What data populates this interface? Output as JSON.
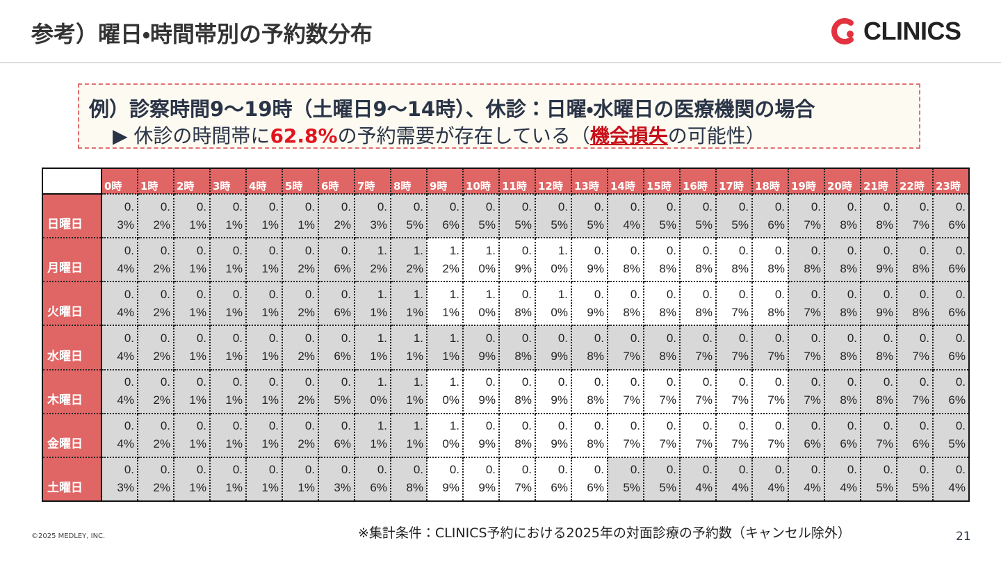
{
  "header": {
    "title": "参考）曜日・時間帯別の予約数分布",
    "logo": "CLINICS"
  },
  "callout": {
    "line1": "例）診察時間9〜19時（土曜日9〜14時）、休診：日曜・水曜日の医療機関の場合",
    "line2": [
      "▶ 休診の時間帯に",
      "62.8%",
      "の予約需要が存在している（",
      "機会損失",
      "の可能性）"
    ]
  },
  "table": {
    "columns": [
      "0時",
      "1時",
      "2時",
      "3時",
      "4時",
      "5時",
      "6時",
      "7時",
      "8時",
      "9時",
      "10時",
      "11時",
      "12時",
      "13時",
      "14時",
      "15時",
      "16時",
      "17時",
      "18時",
      "19時",
      "20時",
      "21時",
      "22時",
      "23時"
    ],
    "rows": [
      {
        "label": "日曜日",
        "cells": [
          "0.3%",
          "0.2%",
          "0.1%",
          "0.1%",
          "0.1%",
          "0.1%",
          "0.2%",
          "0.3%",
          "0.5%",
          "0.6%",
          "0.5%",
          "0.5%",
          "0.5%",
          "0.5%",
          "0.4%",
          "0.5%",
          "0.5%",
          "0.5%",
          "0.6%",
          "0.7%",
          "0.8%",
          "0.8%",
          "0.7%",
          "0.6%"
        ]
      },
      {
        "label": "月曜日",
        "cells": [
          "0.4%",
          "0.2%",
          "0.1%",
          "0.1%",
          "0.1%",
          "0.2%",
          "0.6%",
          "1.2%",
          "1.2%",
          "1.2%",
          "1.0%",
          "0.9%",
          "1.0%",
          "0.9%",
          "0.8%",
          "0.8%",
          "0.8%",
          "0.8%",
          "0.8%",
          "0.8%",
          "0.8%",
          "0.9%",
          "0.8%",
          "0.6%"
        ]
      },
      {
        "label": "火曜日",
        "cells": [
          "0.4%",
          "0.2%",
          "0.1%",
          "0.1%",
          "0.1%",
          "0.2%",
          "0.6%",
          "1.1%",
          "1.1%",
          "1.1%",
          "1.0%",
          "0.8%",
          "1.0%",
          "0.9%",
          "0.8%",
          "0.8%",
          "0.8%",
          "0.7%",
          "0.8%",
          "0.7%",
          "0.8%",
          "0.9%",
          "0.8%",
          "0.6%"
        ]
      },
      {
        "label": "水曜日",
        "cells": [
          "0.4%",
          "0.2%",
          "0.1%",
          "0.1%",
          "0.1%",
          "0.2%",
          "0.6%",
          "1.1%",
          "1.1%",
          "1.1%",
          "0.9%",
          "0.8%",
          "0.9%",
          "0.8%",
          "0.7%",
          "0.8%",
          "0.7%",
          "0.7%",
          "0.7%",
          "0.7%",
          "0.8%",
          "0.8%",
          "0.7%",
          "0.6%"
        ]
      },
      {
        "label": "木曜日",
        "cells": [
          "0.4%",
          "0.2%",
          "0.1%",
          "0.1%",
          "0.1%",
          "0.2%",
          "0.5%",
          "1.0%",
          "1.1%",
          "1.0%",
          "0.9%",
          "0.8%",
          "0.9%",
          "0.8%",
          "0.7%",
          "0.7%",
          "0.7%",
          "0.7%",
          "0.7%",
          "0.7%",
          "0.8%",
          "0.8%",
          "0.7%",
          "0.6%"
        ]
      },
      {
        "label": "金曜日",
        "cells": [
          "0.4%",
          "0.2%",
          "0.1%",
          "0.1%",
          "0.1%",
          "0.2%",
          "0.6%",
          "1.1%",
          "1.1%",
          "1.0%",
          "0.9%",
          "0.8%",
          "0.9%",
          "0.8%",
          "0.7%",
          "0.7%",
          "0.7%",
          "0.7%",
          "0.7%",
          "0.6%",
          "0.6%",
          "0.7%",
          "0.6%",
          "0.5%"
        ]
      },
      {
        "label": "土曜日",
        "cells": [
          "0.3%",
          "0.2%",
          "0.1%",
          "0.1%",
          "0.1%",
          "0.1%",
          "0.3%",
          "0.6%",
          "0.8%",
          "0.9%",
          "0.9%",
          "0.7%",
          "0.6%",
          "0.6%",
          "0.5%",
          "0.5%",
          "0.4%",
          "0.4%",
          "0.4%",
          "0.4%",
          "0.4%",
          "0.5%",
          "0.5%",
          "0.4%"
        ]
      }
    ]
  },
  "footer": {
    "note": "※集計条件：CLINICS予約における2025年の対面診療の予約数（キャンセル除外）",
    "copyright": "©2025 MEDLEY, INC.",
    "page": "21"
  }
}
